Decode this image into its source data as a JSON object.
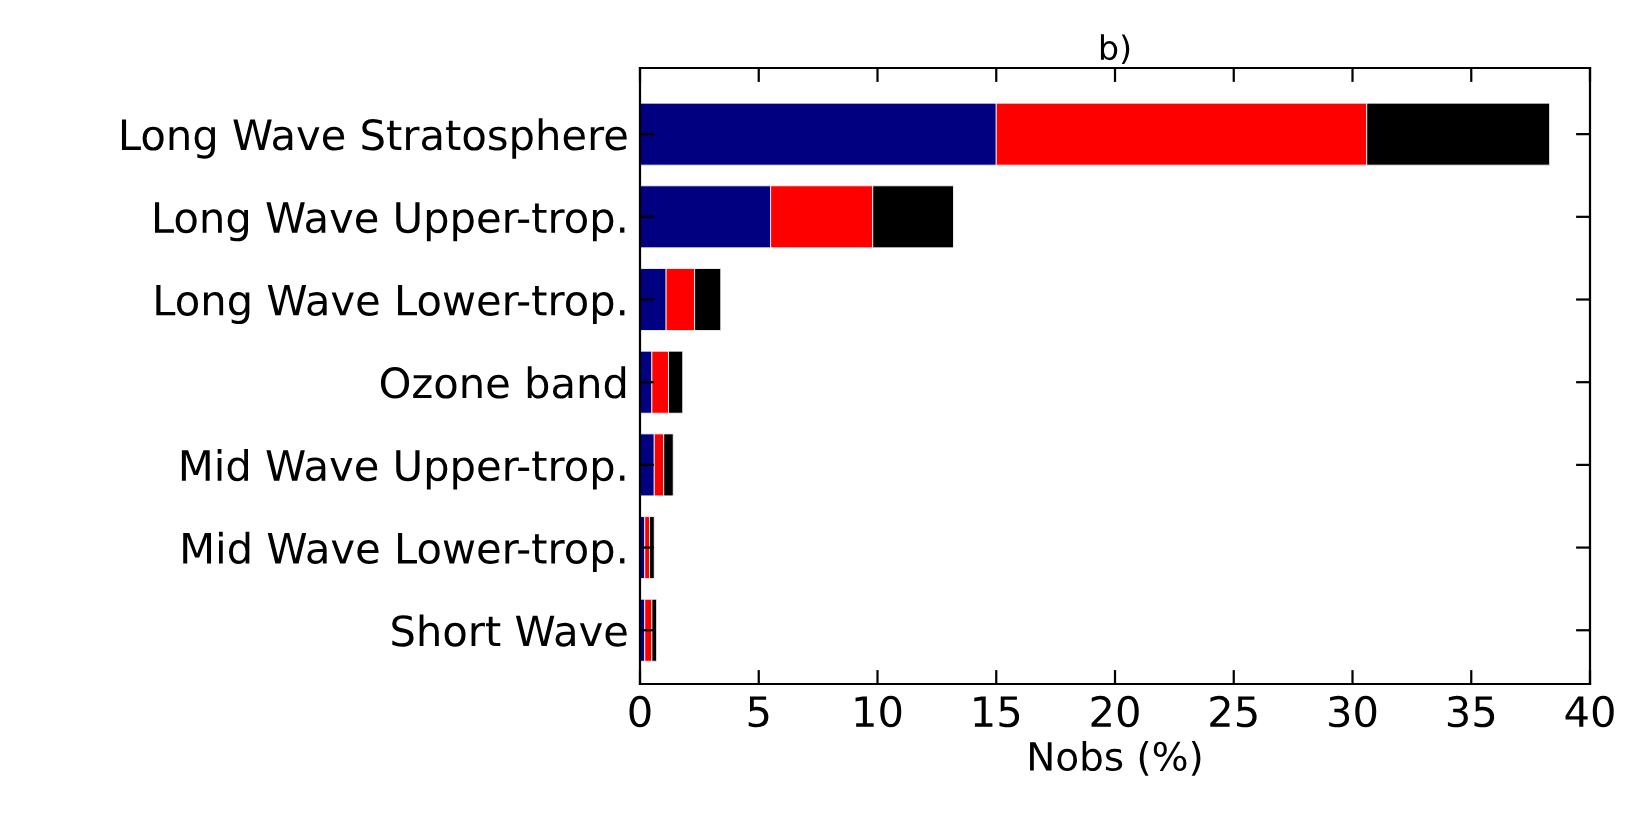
{
  "chart_data": {
    "type": "bar",
    "title": "b)",
    "xlabel": "Nobs (%)",
    "orientation": "horizontal",
    "stacked": true,
    "categories": [
      "Long Wave Stratosphere",
      "Long Wave Upper-trop.",
      "Long Wave Lower-trop.",
      "Ozone band",
      "Mid Wave Upper-trop.",
      "Mid Wave Lower-trop.",
      "Short Wave"
    ],
    "series": [
      {
        "color": "#000080",
        "values": [
          15.0,
          5.5,
          1.1,
          0.5,
          0.6,
          0.2,
          0.2
        ]
      },
      {
        "color": "#ff0000",
        "values": [
          15.6,
          4.3,
          1.2,
          0.7,
          0.4,
          0.2,
          0.3
        ]
      },
      {
        "color": "#000000",
        "values": [
          7.7,
          3.4,
          1.1,
          0.6,
          0.4,
          0.2,
          0.2
        ]
      }
    ],
    "xlim": [
      0,
      40
    ],
    "xticks": [
      0,
      5,
      10,
      15,
      20,
      25,
      30,
      35,
      40
    ],
    "grid": false,
    "legend": false
  }
}
